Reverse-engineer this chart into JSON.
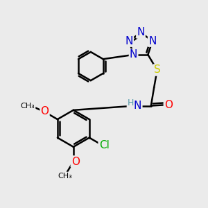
{
  "background_color": "#ebebeb",
  "atom_colors": {
    "C": "#000000",
    "N": "#0000cc",
    "O": "#ff0000",
    "S": "#cccc00",
    "Cl": "#00aa00",
    "H": "#5599aa"
  },
  "bond_color": "#000000",
  "bond_width": 1.8,
  "font_size": 11,
  "title": ""
}
